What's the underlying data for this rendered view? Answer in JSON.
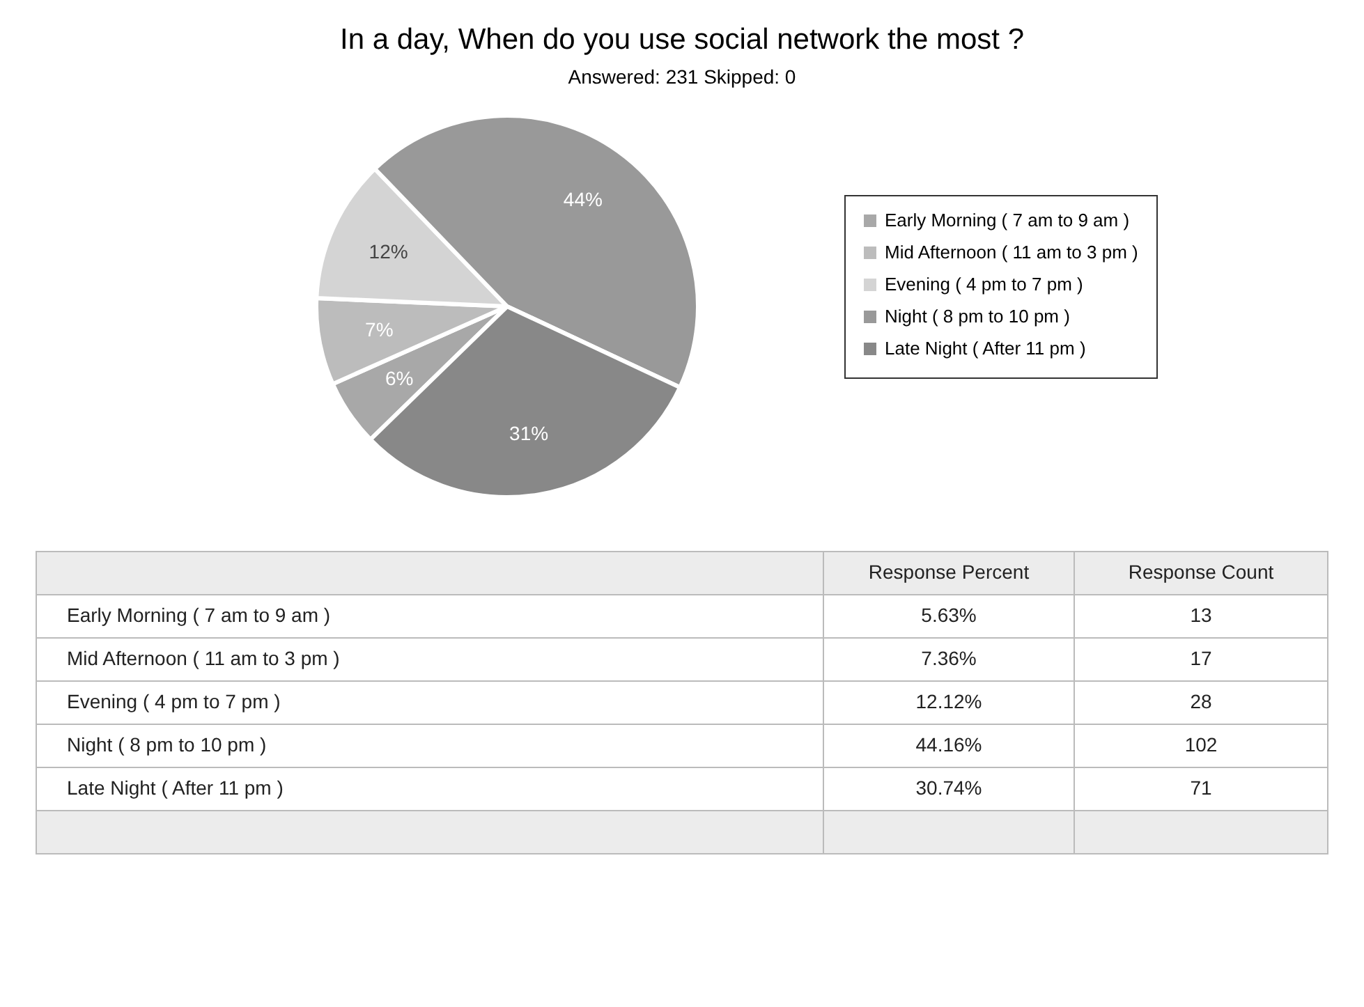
{
  "chart_data": {
    "type": "pie",
    "title": "In a day, When do you use social network the most ?",
    "subtitle": "Answered: 231  Skipped: 0",
    "categories": [
      "Early Morning ( 7 am to 9 am )",
      "Mid Afternoon ( 11 am to 3 pm )",
      "Evening ( 4 pm to 7 pm )",
      "Night ( 8 pm to 10 pm )",
      "Late Night ( After 11 pm )"
    ],
    "values": [
      5.63,
      7.36,
      12.12,
      44.16,
      30.74
    ],
    "colors": [
      "#a8a8a8",
      "#bcbcbc",
      "#d4d4d4",
      "#999999",
      "#888888"
    ],
    "value_labels": [
      "6%",
      "7%",
      "12%",
      "44%",
      "31%"
    ],
    "legend": "right",
    "annotations": [
      "Response Percent",
      "Response Count",
      "5.63%",
      "13",
      "7.36%",
      "17",
      "12.12%",
      "28",
      "44.16%",
      "102",
      "30.74%",
      "71"
    ]
  }
}
